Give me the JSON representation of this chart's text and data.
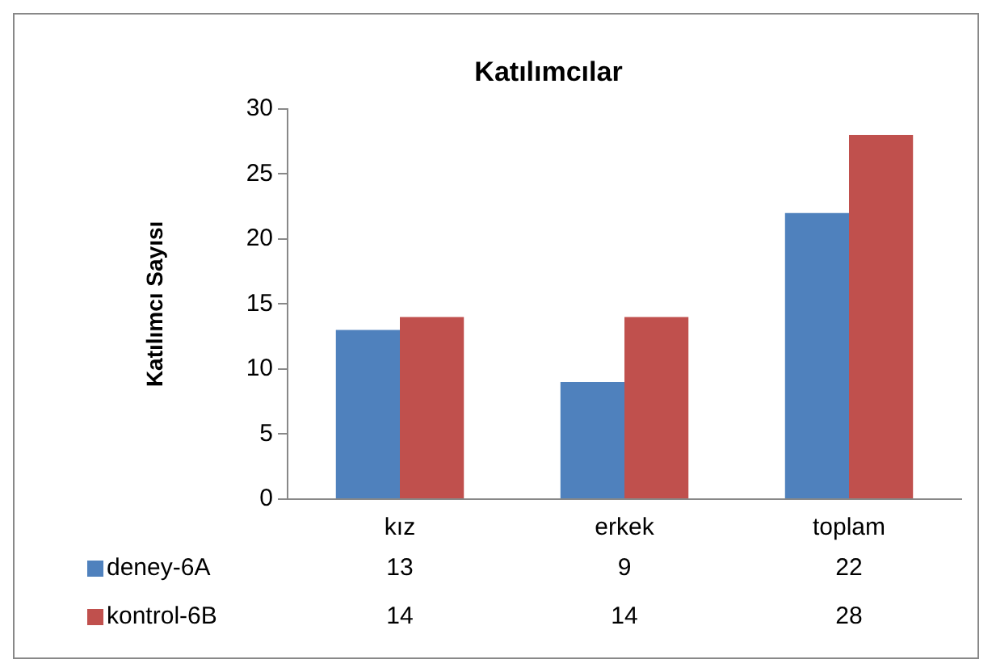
{
  "chart_data": {
    "type": "bar",
    "title": "Katılımcılar",
    "ylabel": "Katılımcı Sayısı",
    "categories": [
      "kız",
      "erkek",
      "toplam"
    ],
    "series": [
      {
        "name": "deney-6A",
        "color": "#4f81bd",
        "values": [
          13,
          9,
          22
        ]
      },
      {
        "name": "kontrol-6B",
        "color": "#c0504d",
        "values": [
          14,
          14,
          28
        ]
      }
    ],
    "ylim": [
      0,
      30
    ],
    "yticks": [
      0,
      5,
      10,
      15,
      20,
      25,
      30
    ],
    "legend": "bottom",
    "data_labels": true
  }
}
